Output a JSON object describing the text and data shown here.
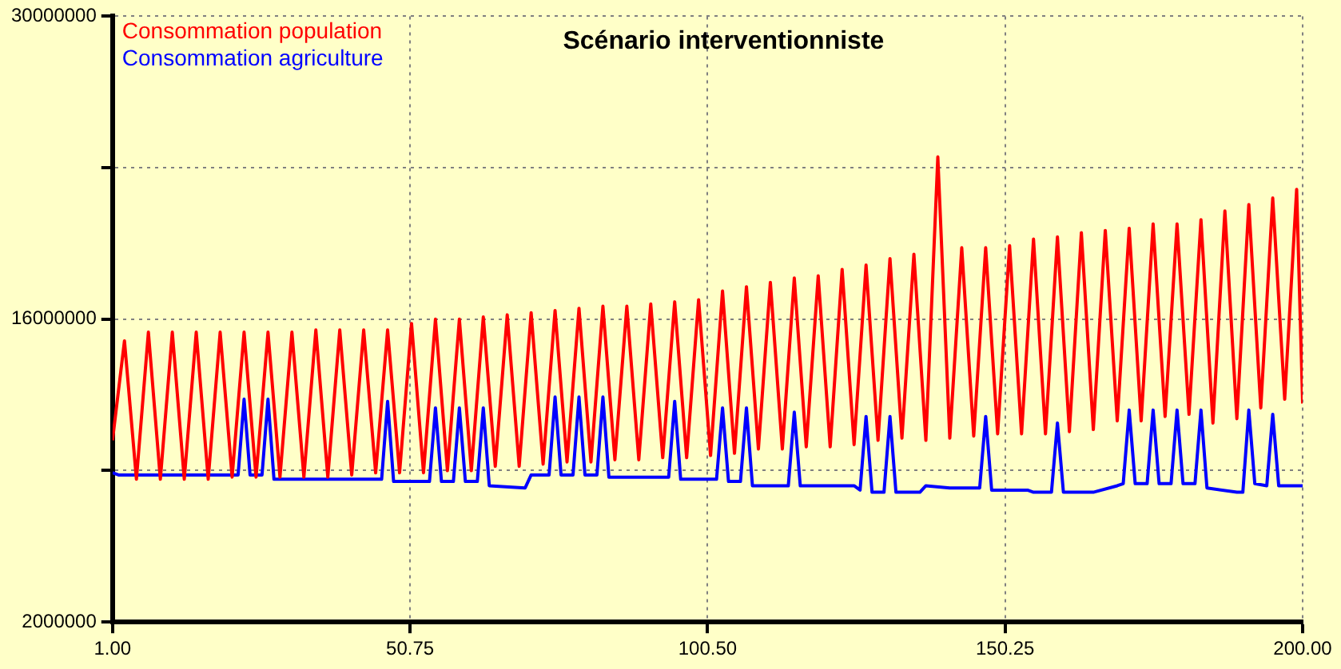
{
  "chart_data": {
    "type": "line",
    "title": "Scénario interventionniste",
    "series": [
      {
        "name": "Consommation population",
        "color": "#ff0000",
        "x": [
          1,
          3,
          5,
          7,
          9,
          11,
          13,
          15,
          17,
          19,
          21,
          23,
          25,
          27,
          29,
          31,
          33,
          35,
          37,
          39,
          41,
          43,
          45,
          47,
          49,
          51,
          53,
          55,
          57,
          59,
          61,
          63,
          65,
          67,
          69,
          71,
          73,
          75,
          77,
          79,
          81,
          83,
          85,
          87,
          89,
          91,
          93,
          95,
          97,
          99,
          101,
          103,
          105,
          107,
          109,
          111,
          113,
          115,
          117,
          119,
          121,
          123,
          125,
          127,
          129,
          131,
          133,
          135,
          137,
          139,
          141,
          143,
          145,
          147,
          149,
          151,
          153,
          155,
          157,
          159,
          161,
          163,
          165,
          167,
          169,
          171,
          173,
          175,
          177,
          179,
          181,
          183,
          185,
          187,
          189,
          191,
          193,
          195,
          197,
          199,
          200
        ],
        "values": [
          10400000,
          15000000,
          8600000,
          15400000,
          8600000,
          15400000,
          8600000,
          15400000,
          8600000,
          15400000,
          8700000,
          15400000,
          8700000,
          15400000,
          8700000,
          15400000,
          8700000,
          15500000,
          8700000,
          15500000,
          8800000,
          15500000,
          8900000,
          15500000,
          8900000,
          15800000,
          8900000,
          16000000,
          9000000,
          16000000,
          9000000,
          16100000,
          9200000,
          16200000,
          9200000,
          16300000,
          9300000,
          16400000,
          9400000,
          16500000,
          9400000,
          16600000,
          9500000,
          16600000,
          9500000,
          16700000,
          9600000,
          16800000,
          9600000,
          16900000,
          9700000,
          17300000,
          9800000,
          17500000,
          10000000,
          17700000,
          10000000,
          17900000,
          10100000,
          18000000,
          10100000,
          18300000,
          10200000,
          18500000,
          10400000,
          18800000,
          10500000,
          19000000,
          10400000,
          23500000,
          10500000,
          19300000,
          10600000,
          19300000,
          10700000,
          19400000,
          10700000,
          19700000,
          10700000,
          19800000,
          10800000,
          20000000,
          10900000,
          20100000,
          11300000,
          20200000,
          11300000,
          20400000,
          11500000,
          20400000,
          11600000,
          20600000,
          11200000,
          21000000,
          11400000,
          21300000,
          11900000,
          21600000,
          12300000,
          22000000,
          12100000
        ]
      },
      {
        "name": "Consommation agriculture",
        "color": "#0000ff",
        "x": [
          1,
          2,
          22,
          23,
          24,
          26,
          27,
          28,
          46,
          47,
          48,
          54,
          55,
          56,
          58,
          59,
          60,
          62,
          63,
          64,
          70,
          71,
          74,
          75,
          76,
          78,
          79,
          80,
          82,
          83,
          84,
          94,
          95,
          96,
          102,
          103,
          104,
          106,
          107,
          108,
          114,
          115,
          116,
          125,
          126,
          127,
          128,
          130,
          131,
          132,
          136,
          137,
          141,
          146,
          147,
          148,
          154,
          155,
          158,
          159,
          160,
          165,
          169,
          170,
          171,
          172,
          174,
          175,
          176,
          178,
          179,
          180,
          182,
          183,
          184,
          189,
          190,
          191,
          192,
          194,
          195,
          196,
          199,
          200
        ],
        "values": [
          8900000,
          8800000,
          8800000,
          12300000,
          8800000,
          8800000,
          12300000,
          8600000,
          8600000,
          12200000,
          8500000,
          8500000,
          11900000,
          8500000,
          8500000,
          11900000,
          8500000,
          8500000,
          11900000,
          8300000,
          8200000,
          8800000,
          8800000,
          12400000,
          8800000,
          8800000,
          12400000,
          8800000,
          8800000,
          12400000,
          8700000,
          8700000,
          12200000,
          8600000,
          8600000,
          11900000,
          8500000,
          8500000,
          11900000,
          8300000,
          8300000,
          11700000,
          8300000,
          8300000,
          8100000,
          11500000,
          8000000,
          8000000,
          11500000,
          8000000,
          8000000,
          8300000,
          8200000,
          8200000,
          11500000,
          8100000,
          8100000,
          8000000,
          8000000,
          11200000,
          8000000,
          8000000,
          8300000,
          8400000,
          11800000,
          8400000,
          8400000,
          11800000,
          8400000,
          8400000,
          11800000,
          8400000,
          8400000,
          11800000,
          8200000,
          8000000,
          8000000,
          11800000,
          8400000,
          8300000,
          11600000,
          8300000,
          8300000,
          8300000
        ]
      }
    ],
    "xlim": [
      1,
      200
    ],
    "xticks": [
      {
        "value": 1,
        "label": "1.00"
      },
      {
        "value": 50.75,
        "label": "50.75"
      },
      {
        "value": 100.5,
        "label": "100.50"
      },
      {
        "value": 150.25,
        "label": "150.25"
      },
      {
        "value": 200,
        "label": "200.00"
      }
    ],
    "ylim": [
      2000000,
      30000000
    ],
    "yticks": [
      2000000,
      {
        "value": 9000000,
        "label": null
      },
      16000000,
      {
        "value": 23000000,
        "label": null
      },
      30000000
    ],
    "grid": true,
    "legend": "top left",
    "marker": "none",
    "line_style": "solid"
  }
}
